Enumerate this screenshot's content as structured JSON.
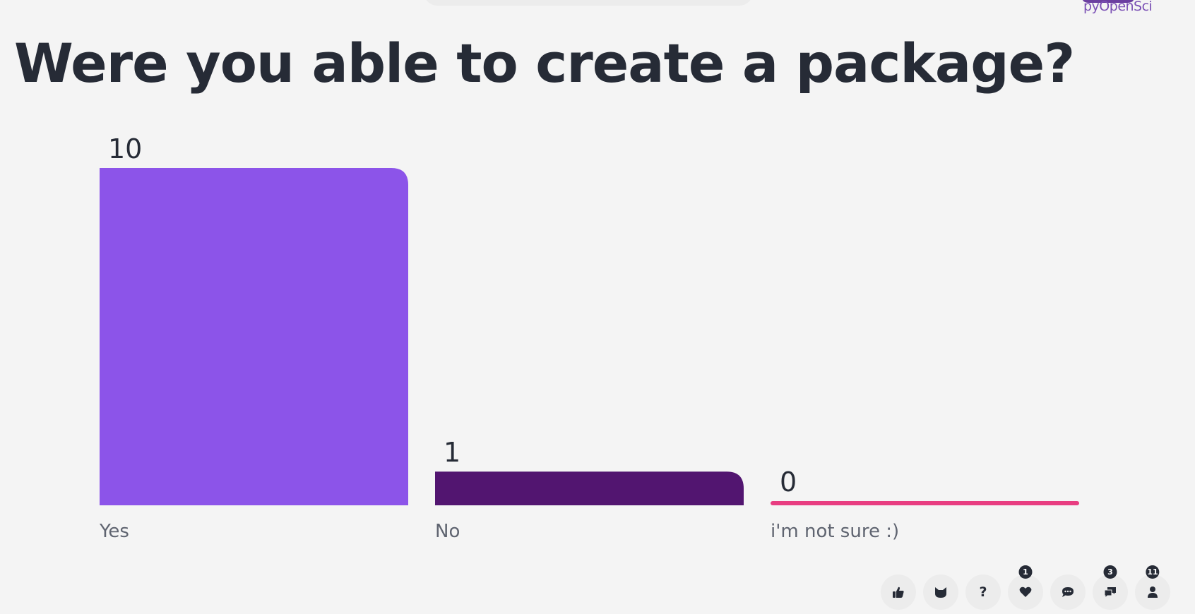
{
  "logo": {
    "text": "pyOpenSci"
  },
  "chart_data": {
    "type": "bar",
    "title": "Were you able to create a package?",
    "categories": [
      "Yes",
      "No",
      "i'm not sure :)"
    ],
    "values": [
      10,
      1,
      0
    ],
    "data_labels": [
      "10",
      "1",
      "0"
    ],
    "colors": [
      "#8c54e9",
      "#521570",
      "#e83d81"
    ],
    "ylim": [
      0,
      10
    ],
    "grid": false,
    "legend": "none",
    "xlabel": "",
    "ylabel": ""
  },
  "toolbar": {
    "buttons": [
      {
        "name": "thumbs-up",
        "icon": "thumbs-up-icon"
      },
      {
        "name": "cat",
        "icon": "cat-icon"
      },
      {
        "name": "question",
        "icon": "question-icon",
        "label": "?"
      },
      {
        "name": "heart",
        "icon": "heart-icon",
        "badge": "1"
      },
      {
        "name": "comment",
        "icon": "comment-icon"
      },
      {
        "name": "comments",
        "icon": "comments-icon",
        "badge": "3"
      },
      {
        "name": "audience",
        "icon": "user-icon",
        "badge": "11"
      }
    ]
  }
}
